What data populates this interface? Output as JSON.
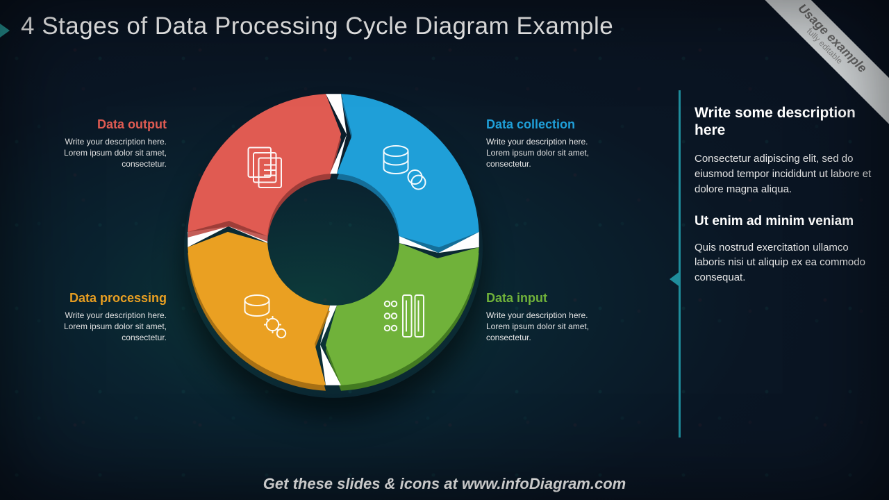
{
  "title": "4 Stages of Data Processing Cycle Diagram Example",
  "footer_prefix": "Get these slides & icons at ",
  "footer_domain": "www.infoDiagram.com",
  "ribbon": {
    "line1": "Usage example",
    "line2": "fully editable"
  },
  "colors": {
    "background_gradient_inner": "#0c3a3a",
    "background_gradient_outer": "#0a1220",
    "accent": "#1f8d9c",
    "ribbon_bg": "#d7dbdd",
    "ribbon_text": "#6b6b6b",
    "text": "#ffffff"
  },
  "diagram": {
    "type": "cycle_donut_4_segments",
    "direction": "clockwise",
    "outer_radius": 210,
    "inner_radius": 95,
    "gap_color": "#ffffff",
    "gap_width_deg": 6,
    "segments": [
      {
        "key": "collection",
        "label": "Data collection",
        "body": "Write your description here. Lorem ipsum dolor sit amet, consectetur.",
        "color": "#1f9fd8",
        "shadow": "#167bab",
        "label_color": "#1f9fd8",
        "icon": "database-coins"
      },
      {
        "key": "input",
        "label": "Data input",
        "body": "Write your description here. Lorem ipsum dolor sit amet, consectetur.",
        "color": "#70b23a",
        "shadow": "#4d8a1f",
        "label_color": "#70b23a",
        "icon": "server-scan"
      },
      {
        "key": "processing",
        "label": "Data processing",
        "body": "Write your description here. Lorem ipsum dolor sit amet, consectetur.",
        "color": "#eaa022",
        "shadow": "#c47d0f",
        "label_color": "#eaa022",
        "icon": "database-gears"
      },
      {
        "key": "output",
        "label": "Data output",
        "body": "Write your description here. Lorem ipsum dolor sit amet, consectetur.",
        "color": "#e05b52",
        "shadow": "#b9413a",
        "label_color": "#e05b52",
        "icon": "reports"
      }
    ]
  },
  "sidebar": {
    "heading1": "Write some description here",
    "para1": "Consectetur adipiscing elit, sed do eiusmod tempor incididunt ut labore et dolore magna aliqua.",
    "heading2": "Ut enim ad minim veniam",
    "para2": "Quis nostrud exercitation ullamco laboris nisi ut aliquip ex ea commodo consequat."
  }
}
